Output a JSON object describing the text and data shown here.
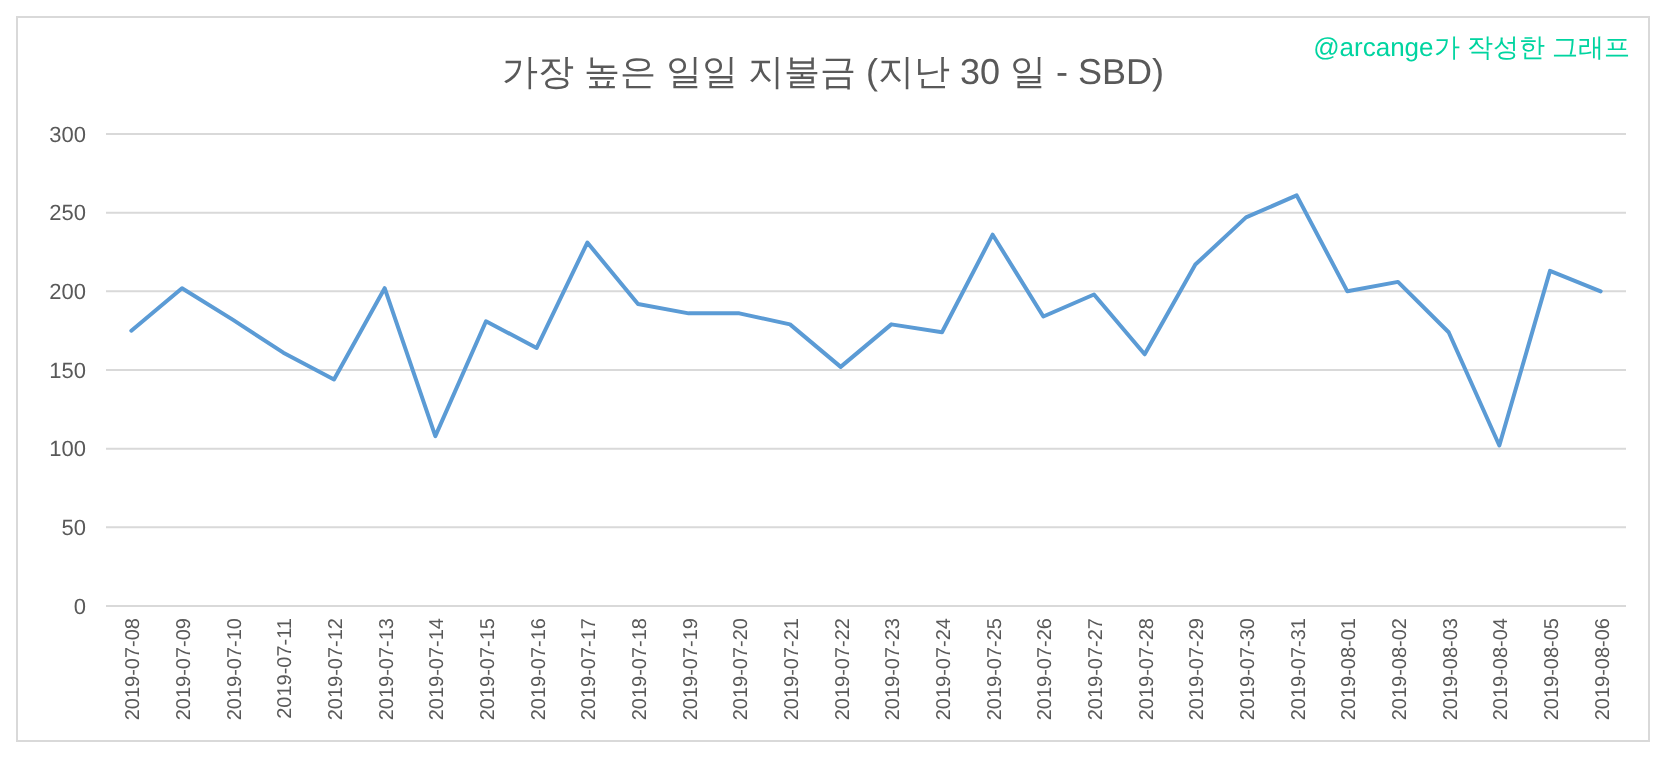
{
  "chart_data": {
    "type": "line",
    "title": "가장 높은 일일 지불금 (지난 30 일 - SBD)",
    "annotations": [
      "@arcange가 작성한 그래프"
    ],
    "categories": [
      "2019-07-08",
      "2019-07-09",
      "2019-07-10",
      "2019-07-11",
      "2019-07-12",
      "2019-07-13",
      "2019-07-14",
      "2019-07-15",
      "2019-07-16",
      "2019-07-17",
      "2019-07-18",
      "2019-07-19",
      "2019-07-20",
      "2019-07-21",
      "2019-07-22",
      "2019-07-23",
      "2019-07-24",
      "2019-07-25",
      "2019-07-26",
      "2019-07-27",
      "2019-07-28",
      "2019-07-29",
      "2019-07-30",
      "2019-07-31",
      "2019-08-01",
      "2019-08-02",
      "2019-08-03",
      "2019-08-04",
      "2019-08-05",
      "2019-08-06"
    ],
    "series": [
      {
        "color": "#5b9bd5",
        "values": [
          175,
          202,
          182,
          161,
          144,
          202,
          108,
          181,
          164,
          231,
          192,
          186,
          186,
          179,
          152,
          179,
          174,
          236,
          184,
          198,
          160,
          217,
          247,
          261,
          200,
          206,
          174,
          102,
          213,
          200
        ]
      }
    ],
    "ylim": [
      0,
      300
    ],
    "yticks": [
      0,
      50,
      100,
      150,
      200,
      250,
      300
    ],
    "grid": "y",
    "marker": "none",
    "line_style": "solid"
  }
}
